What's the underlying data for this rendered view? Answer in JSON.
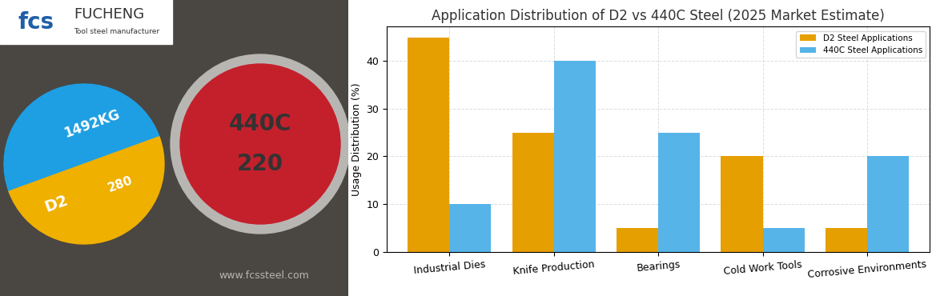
{
  "logo": {
    "mark": "fcs",
    "name": "FUCHENG",
    "tagline": "Tool steel manufacturer"
  },
  "photo": {
    "watermark": "www.fcssteel.com",
    "bars": [
      {
        "colors": [
          "#1e9fe3",
          "#f0b000"
        ],
        "labels": [
          "1492KG",
          "D2",
          "280"
        ]
      },
      {
        "colors": [
          "#c4202c"
        ],
        "labels": [
          "440C",
          "220"
        ]
      }
    ]
  },
  "chart_data": {
    "type": "bar",
    "title": "Application Distribution of D2 vs 440C Steel (2025 Market Estimate)",
    "y_label": "Usage Distribution (%)",
    "categories": [
      "Industrial Dies",
      "Knife Production",
      "Bearings",
      "Cold Work Tools",
      "Corrosive Environments"
    ],
    "series": [
      {
        "name": "D2 Steel Applications",
        "color": "#e69f00",
        "values": [
          45,
          25,
          5,
          20,
          5
        ]
      },
      {
        "name": "440C Steel Applications",
        "color": "#56b4e9",
        "values": [
          10,
          40,
          25,
          5,
          20
        ]
      }
    ],
    "ylim": [
      0,
      47.25
    ],
    "yticks": [
      0,
      10,
      20,
      30,
      40
    ],
    "grid": true,
    "legend": "upper right"
  }
}
